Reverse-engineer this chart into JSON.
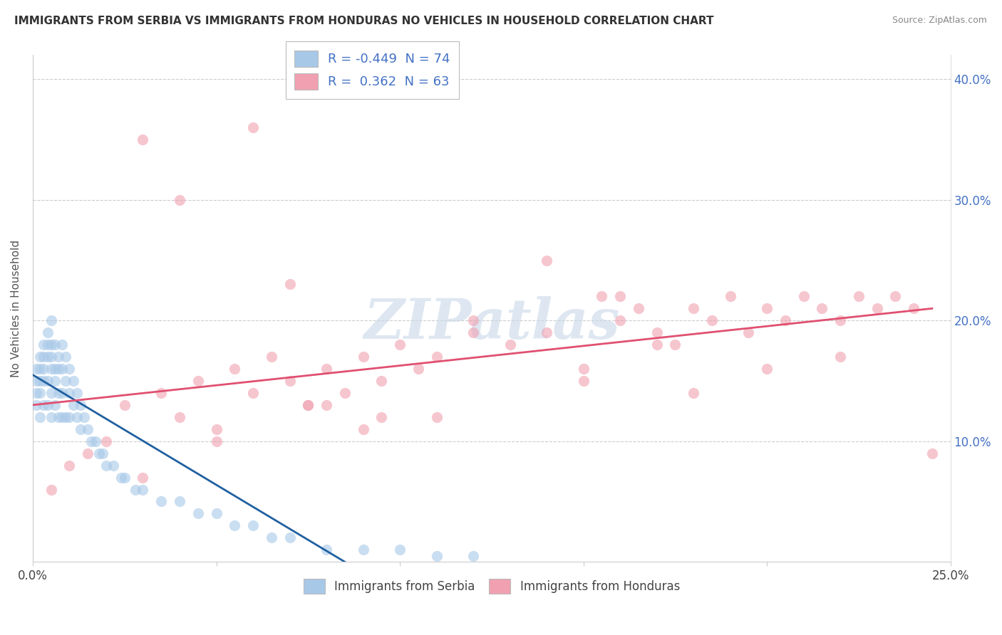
{
  "title": "IMMIGRANTS FROM SERBIA VS IMMIGRANTS FROM HONDURAS NO VEHICLES IN HOUSEHOLD CORRELATION CHART",
  "source": "Source: ZipAtlas.com",
  "ylabel": "No Vehicles in Household",
  "legend_serbia_r": "-0.449",
  "legend_serbia_n": "74",
  "legend_honduras_r": "0.362",
  "legend_honduras_n": "63",
  "serbia_color": "#a8c8e8",
  "serbia_line_color": "#2060a0",
  "honduras_color": "#f0a0b0",
  "honduras_line_color": "#e05070",
  "xlim": [
    0.0,
    0.25
  ],
  "ylim": [
    0.0,
    0.42
  ],
  "watermark": "ZIPatlas",
  "serbia_x": [
    0.001,
    0.001,
    0.001,
    0.001,
    0.002,
    0.002,
    0.002,
    0.002,
    0.002,
    0.003,
    0.003,
    0.003,
    0.003,
    0.003,
    0.004,
    0.004,
    0.004,
    0.004,
    0.004,
    0.005,
    0.005,
    0.005,
    0.005,
    0.005,
    0.005,
    0.006,
    0.006,
    0.006,
    0.006,
    0.007,
    0.007,
    0.007,
    0.007,
    0.008,
    0.008,
    0.008,
    0.008,
    0.009,
    0.009,
    0.009,
    0.01,
    0.01,
    0.01,
    0.011,
    0.011,
    0.012,
    0.012,
    0.013,
    0.013,
    0.014,
    0.015,
    0.016,
    0.017,
    0.018,
    0.019,
    0.02,
    0.022,
    0.024,
    0.025,
    0.028,
    0.03,
    0.035,
    0.04,
    0.045,
    0.05,
    0.055,
    0.06,
    0.065,
    0.07,
    0.08,
    0.09,
    0.1,
    0.11,
    0.12
  ],
  "serbia_y": [
    0.16,
    0.15,
    0.14,
    0.13,
    0.17,
    0.16,
    0.15,
    0.14,
    0.12,
    0.18,
    0.17,
    0.16,
    0.15,
    0.13,
    0.19,
    0.18,
    0.17,
    0.15,
    0.13,
    0.2,
    0.18,
    0.17,
    0.16,
    0.14,
    0.12,
    0.18,
    0.16,
    0.15,
    0.13,
    0.17,
    0.16,
    0.14,
    0.12,
    0.18,
    0.16,
    0.14,
    0.12,
    0.17,
    0.15,
    0.12,
    0.16,
    0.14,
    0.12,
    0.15,
    0.13,
    0.14,
    0.12,
    0.13,
    0.11,
    0.12,
    0.11,
    0.1,
    0.1,
    0.09,
    0.09,
    0.08,
    0.08,
    0.07,
    0.07,
    0.06,
    0.06,
    0.05,
    0.05,
    0.04,
    0.04,
    0.03,
    0.03,
    0.02,
    0.02,
    0.01,
    0.01,
    0.01,
    0.005,
    0.005
  ],
  "honduras_x": [
    0.005,
    0.01,
    0.015,
    0.02,
    0.025,
    0.03,
    0.035,
    0.04,
    0.045,
    0.05,
    0.055,
    0.06,
    0.065,
    0.07,
    0.075,
    0.08,
    0.085,
    0.09,
    0.095,
    0.1,
    0.105,
    0.11,
    0.12,
    0.13,
    0.14,
    0.15,
    0.155,
    0.16,
    0.165,
    0.17,
    0.175,
    0.18,
    0.185,
    0.19,
    0.195,
    0.2,
    0.205,
    0.21,
    0.215,
    0.22,
    0.225,
    0.23,
    0.235,
    0.24,
    0.245,
    0.03,
    0.05,
    0.08,
    0.11,
    0.14,
    0.16,
    0.18,
    0.2,
    0.22,
    0.07,
    0.09,
    0.12,
    0.15,
    0.17,
    0.06,
    0.04,
    0.075,
    0.095
  ],
  "honduras_y": [
    0.06,
    0.08,
    0.09,
    0.1,
    0.13,
    0.07,
    0.14,
    0.12,
    0.15,
    0.11,
    0.16,
    0.14,
    0.17,
    0.15,
    0.13,
    0.16,
    0.14,
    0.17,
    0.15,
    0.18,
    0.16,
    0.17,
    0.2,
    0.18,
    0.19,
    0.16,
    0.22,
    0.2,
    0.21,
    0.19,
    0.18,
    0.21,
    0.2,
    0.22,
    0.19,
    0.21,
    0.2,
    0.22,
    0.21,
    0.2,
    0.22,
    0.21,
    0.22,
    0.21,
    0.09,
    0.35,
    0.1,
    0.13,
    0.12,
    0.25,
    0.22,
    0.14,
    0.16,
    0.17,
    0.23,
    0.11,
    0.19,
    0.15,
    0.18,
    0.36,
    0.3,
    0.13,
    0.12
  ],
  "serbia_line_x0": 0.0,
  "serbia_line_x1": 0.085,
  "serbia_line_y0": 0.155,
  "serbia_line_y1": 0.0,
  "honduras_line_x0": 0.0,
  "honduras_line_x1": 0.245,
  "honduras_line_y0": 0.13,
  "honduras_line_y1": 0.21
}
